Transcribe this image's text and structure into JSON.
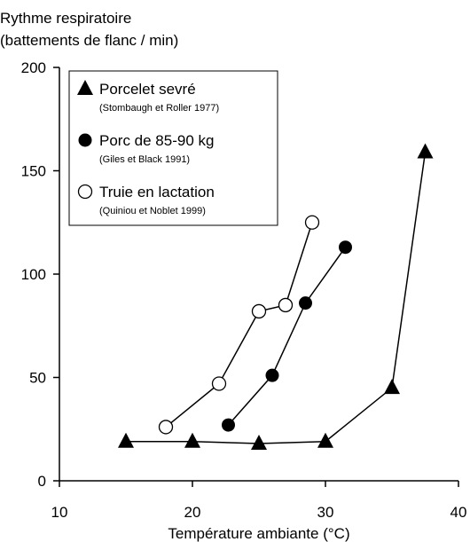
{
  "chart_data": {
    "type": "line",
    "ylabel_line1": "Rythme respiratoire",
    "ylabel_line2": "(battements de flanc / min)",
    "xlabel": "Température ambiante (°C)",
    "xlim": [
      10,
      40
    ],
    "ylim": [
      0,
      200
    ],
    "xticks": [
      10,
      20,
      30,
      40
    ],
    "yticks": [
      0,
      50,
      100,
      150,
      200
    ],
    "grid": false,
    "legend_position": "top-left",
    "series": [
      {
        "name": "Porcelet sevré",
        "source": "(Stombaugh et Roller 1977)",
        "marker": "triangle",
        "color": "#000000",
        "points": [
          [
            15,
            19
          ],
          [
            20,
            19
          ],
          [
            25,
            18
          ],
          [
            30,
            19
          ],
          [
            35,
            45
          ],
          [
            37.5,
            159
          ]
        ]
      },
      {
        "name": "Porc de 85-90 kg",
        "source": "(Giles et Black 1991)",
        "marker": "filled-circle",
        "color": "#000000",
        "points": [
          [
            22.7,
            27
          ],
          [
            26,
            51
          ],
          [
            28.5,
            86
          ],
          [
            31.5,
            113
          ]
        ]
      },
      {
        "name": "Truie en lactation",
        "source": "(Quiniou et Noblet 1999)",
        "marker": "open-circle",
        "color": "#000000",
        "points": [
          [
            18,
            26
          ],
          [
            22,
            47
          ],
          [
            25,
            82
          ],
          [
            27,
            85
          ],
          [
            29,
            125
          ]
        ]
      }
    ]
  }
}
